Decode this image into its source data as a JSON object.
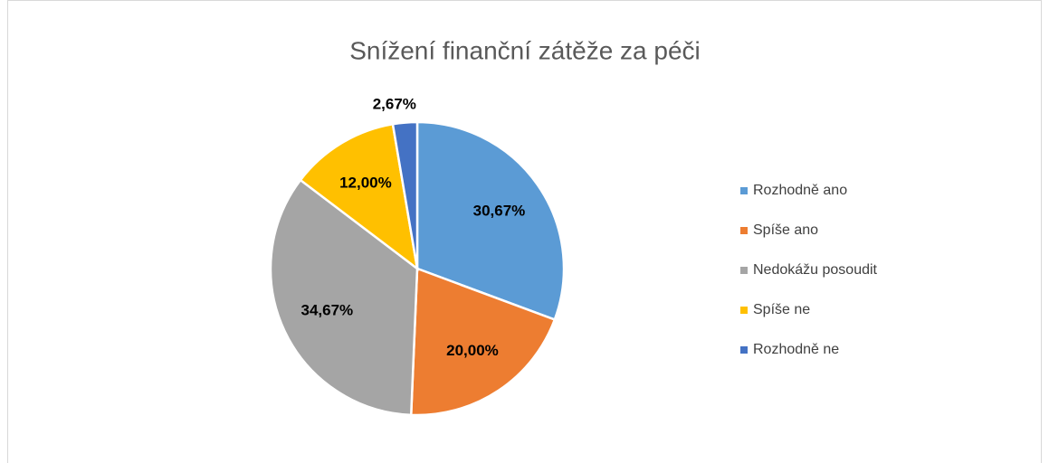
{
  "chart_data": {
    "type": "pie",
    "title": "Snížení finanční zátěže za péči",
    "categories": [
      "Rozhodně ano",
      "Spíše ano",
      "Nedokážu posoudit",
      "Spíše ne",
      "Rozhodně ne"
    ],
    "values": [
      30.67,
      20,
      34.67,
      12,
      2.67
    ],
    "value_labels": [
      "30,67%",
      "20,00%",
      "34,67%",
      "12,00%",
      "2,67%"
    ],
    "colors": [
      "#5b9bd5",
      "#ed7d31",
      "#a5a5a5",
      "#ffc000",
      "#4472c4"
    ],
    "legend": "right"
  }
}
